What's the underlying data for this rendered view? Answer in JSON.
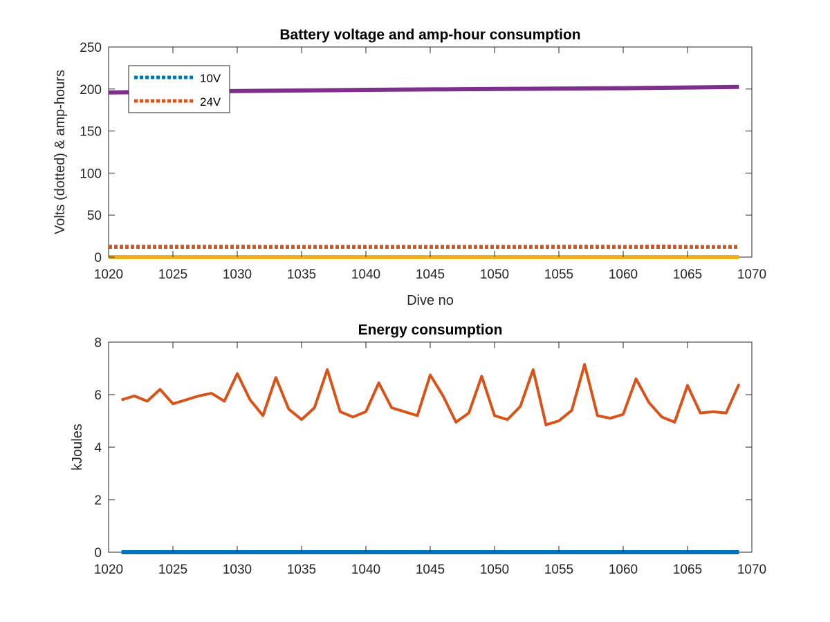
{
  "chart_data": [
    {
      "type": "line",
      "title": "Battery voltage and amp-hour consumption",
      "xlabel": "Dive no",
      "ylabel": "Volts (dotted) & amp-hours",
      "xlim": [
        1020,
        1070
      ],
      "ylim": [
        0,
        250
      ],
      "xticks": [
        1020,
        1025,
        1030,
        1035,
        1040,
        1045,
        1050,
        1055,
        1060,
        1065,
        1070
      ],
      "yticks": [
        0,
        50,
        100,
        150,
        200,
        250
      ],
      "grid": false,
      "legend": {
        "position": "top-left",
        "entries": [
          "10V",
          "24V"
        ]
      },
      "series": [
        {
          "name": "10V",
          "style": "dotted",
          "color": "#0072BD",
          "x": [
            1020,
            1069
          ],
          "y": [
            12.0,
            12.0
          ]
        },
        {
          "name": "24V",
          "style": "dotted",
          "color": "#D95319",
          "x": [
            1020,
            1030,
            1040,
            1050,
            1059,
            1060,
            1063,
            1064,
            1067,
            1069
          ],
          "y": [
            12.5,
            12.5,
            12.4,
            12.4,
            12.6,
            12.3,
            12.8,
            12.5,
            12.2,
            12.4
          ]
        },
        {
          "style": "solid",
          "color": "#7E2F8E",
          "x": [
            1020,
            1030,
            1040,
            1050,
            1060,
            1069
          ],
          "y": [
            196,
            197.5,
            199,
            200,
            201,
            202.5
          ]
        },
        {
          "style": "solid",
          "color": "#EDB120",
          "x": [
            1020,
            1069
          ],
          "y": [
            0,
            0
          ]
        }
      ]
    },
    {
      "type": "line",
      "title": "Energy consumption",
      "xlabel": "",
      "ylabel": "kJoules",
      "xlim": [
        1020,
        1070
      ],
      "ylim": [
        0,
        8
      ],
      "xticks": [
        1020,
        1025,
        1030,
        1035,
        1040,
        1045,
        1050,
        1055,
        1060,
        1065,
        1070
      ],
      "yticks": [
        0,
        2,
        4,
        6,
        8
      ],
      "grid": false,
      "series": [
        {
          "style": "solid",
          "color": "#0072BD",
          "x": [
            1021,
            1069
          ],
          "y": [
            0,
            0
          ]
        },
        {
          "style": "solid",
          "color": "#D95319",
          "x": [
            1021,
            1022,
            1023,
            1024,
            1025,
            1026,
            1027,
            1028,
            1029,
            1030,
            1031,
            1032,
            1033,
            1034,
            1035,
            1036,
            1037,
            1038,
            1039,
            1040,
            1041,
            1042,
            1043,
            1044,
            1045,
            1046,
            1047,
            1048,
            1049,
            1050,
            1051,
            1052,
            1053,
            1054,
            1055,
            1056,
            1057,
            1058,
            1059,
            1060,
            1061,
            1062,
            1063,
            1064,
            1065,
            1066,
            1067,
            1068,
            1069
          ],
          "y": [
            5.8,
            5.95,
            5.75,
            6.2,
            5.65,
            5.8,
            5.95,
            6.05,
            5.75,
            6.8,
            5.8,
            5.2,
            6.65,
            5.45,
            5.05,
            5.5,
            6.95,
            5.35,
            5.15,
            5.35,
            6.45,
            5.5,
            5.35,
            5.2,
            6.75,
            5.95,
            4.95,
            5.3,
            6.7,
            5.2,
            5.05,
            5.55,
            6.95,
            4.85,
            5.0,
            5.4,
            7.15,
            5.2,
            5.1,
            5.25,
            6.6,
            5.7,
            5.15,
            4.95,
            6.35,
            5.3,
            5.35,
            5.3,
            6.4
          ]
        }
      ]
    }
  ]
}
